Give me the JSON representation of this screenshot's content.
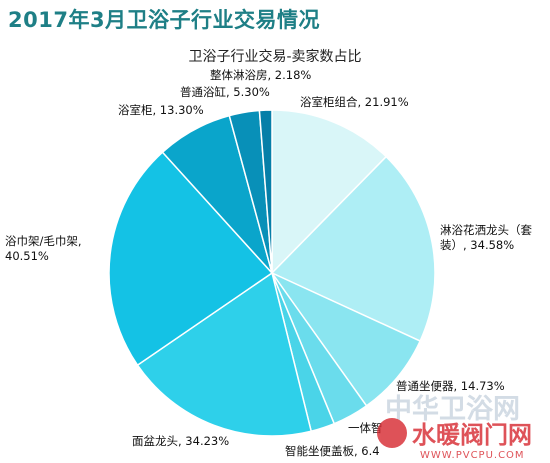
{
  "page_title": "2017年3月卫浴子行业交易情况",
  "chart_data": {
    "type": "pie",
    "title": "卫浴子行业交易-卖家数占比",
    "start_angle_deg": 0,
    "direction": "clockwise",
    "slices": [
      {
        "label_lines": [
          "浴室柜组合, 21.91%"
        ],
        "value": 21.91,
        "color": "#d9f6f8"
      },
      {
        "label_lines": [
          "淋浴花洒龙头（套",
          "装）, 34.58%"
        ],
        "value": 34.58,
        "color": "#aeeef5"
      },
      {
        "label_lines": [
          "普通坐便器, 14.73%"
        ],
        "value": 14.73,
        "color": "#8ae5f0"
      },
      {
        "label_lines": [
          "智能坐便盖板, 6.4"
        ],
        "value": 6.4,
        "color": "#6adcec"
      },
      {
        "label_lines": [
          "一体智"
        ],
        "value": 4.2,
        "color": "#4ad4e8"
      },
      {
        "label_lines": [
          "面盆龙头, 34.23%"
        ],
        "value": 34.23,
        "color": "#2ed0ea"
      },
      {
        "label_lines": [
          "浴巾架/毛巾架,",
          "40.51%"
        ],
        "value": 40.51,
        "color": "#14c2e5"
      },
      {
        "label_lines": [
          "浴室柜, 13.30%"
        ],
        "value": 13.3,
        "color": "#0aa5cb"
      },
      {
        "label_lines": [
          "普通浴缸, 5.30%"
        ],
        "value": 5.3,
        "color": "#0890b8"
      },
      {
        "label_lines": [
          "整体淋浴房, 2.18%"
        ],
        "value": 2.18,
        "color": "#067fa8"
      }
    ]
  },
  "watermark": {
    "brand_cn_1": "中华卫浴网",
    "brand_cn_2": "水暖阀门网",
    "url": "WWW.PVCPU.COM"
  }
}
